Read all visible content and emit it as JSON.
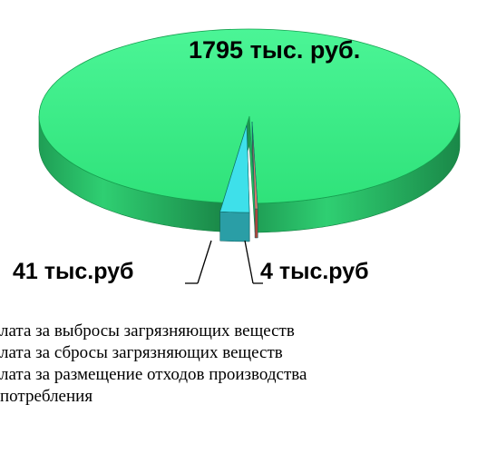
{
  "chart_data": {
    "type": "pie",
    "style": "3d-exploded",
    "slices": [
      {
        "name": "лата за выбросы загрязняющих веществ",
        "value": 1795,
        "label": "1795 тыс. руб.",
        "color": "#33ee7f"
      },
      {
        "name": "лата за сбросы загрязняющих веществ",
        "value": 41,
        "label": "41 тыс.руб",
        "color": "#3ee0ea"
      },
      {
        "name": "лата за размещение отходов производства",
        "value": 4,
        "label": "4 тыс.руб",
        "color": "#d97a6a"
      }
    ],
    "legend": [
      "лата за выбросы загрязняющих веществ",
      "лата за сбросы загрязняющих веществ",
      "лата за размещение отходов производства",
      "потребления"
    ]
  }
}
